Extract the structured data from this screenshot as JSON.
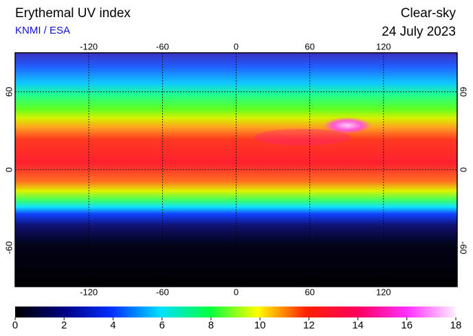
{
  "title": "Erythemal UV index",
  "source": "KNMI / ESA",
  "condition": "Clear-sky",
  "date": "24 July 2023",
  "map": {
    "lonlim": [
      -180,
      180
    ],
    "latlim": [
      -90,
      90
    ],
    "lon_ticks": [
      -120,
      -60,
      0,
      60,
      120
    ],
    "lat_ticks": [
      60,
      0,
      -60
    ]
  },
  "colorbar": {
    "lim": [
      0,
      18
    ],
    "ticks": [
      0,
      2,
      4,
      6,
      8,
      10,
      12,
      14,
      16,
      18
    ]
  }
}
